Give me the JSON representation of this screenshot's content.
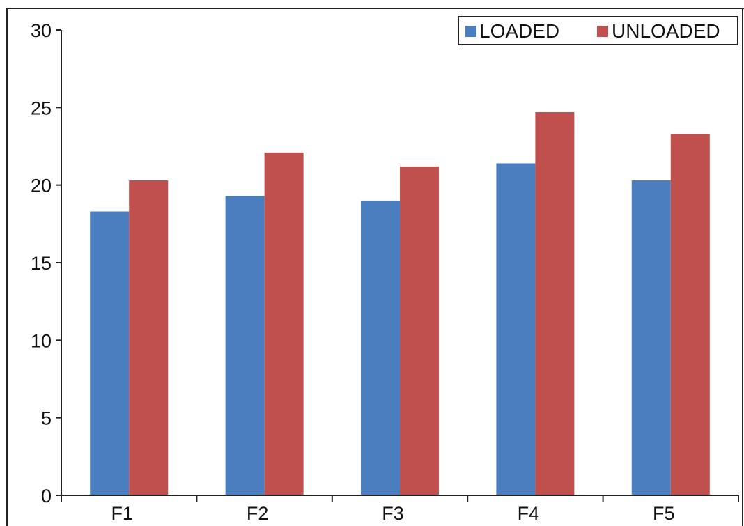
{
  "chart_data": {
    "type": "bar",
    "categories": [
      "F1",
      "F2",
      "F3",
      "F4",
      "F5"
    ],
    "series": [
      {
        "name": "LOADED",
        "color": "#4a7ebf",
        "values": [
          18.3,
          19.3,
          19.0,
          21.4,
          20.3
        ]
      },
      {
        "name": "UNLOADED",
        "color": "#c0504d",
        "values": [
          20.3,
          22.1,
          21.2,
          24.7,
          23.3
        ]
      }
    ],
    "ylim": [
      0,
      30
    ],
    "yticks": [
      0,
      5,
      10,
      15,
      20,
      25,
      30
    ],
    "title": "",
    "xlabel": "",
    "ylabel": "",
    "legend_position": "top-right",
    "grid": false
  }
}
